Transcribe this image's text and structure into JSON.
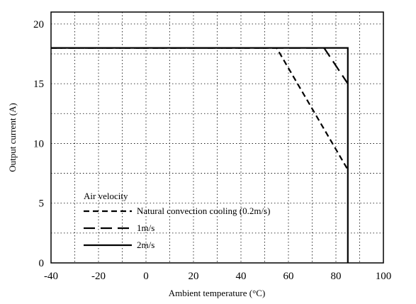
{
  "chart_data": {
    "type": "line",
    "xlabel": "Ambient temperature (°C)",
    "ylabel": "Output current (A)",
    "xlim": [
      -40,
      100
    ],
    "ylim": [
      0,
      21
    ],
    "xticks": [
      -40,
      -20,
      0,
      20,
      40,
      60,
      80,
      100
    ],
    "yticks": [
      0,
      5,
      10,
      15,
      20
    ],
    "grid": true,
    "legend": {
      "title": "Air velocity",
      "placement": "bottom-left"
    },
    "series": [
      {
        "name": "Natural convection cooling (0.2m/s)",
        "style": "short-dash",
        "points": [
          [
            -40,
            18
          ],
          [
            55,
            18
          ],
          [
            85,
            7.8
          ]
        ]
      },
      {
        "name": "1m/s",
        "style": "long-dash",
        "points": [
          [
            -40,
            18
          ],
          [
            75,
            18
          ],
          [
            85,
            15
          ]
        ]
      },
      {
        "name": "2m/s",
        "style": "solid",
        "points": [
          [
            -40,
            18
          ],
          [
            85,
            18
          ],
          [
            85,
            0
          ]
        ]
      }
    ]
  }
}
